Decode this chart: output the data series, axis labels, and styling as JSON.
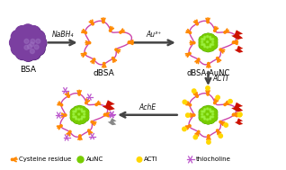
{
  "bg_color": "#ffffff",
  "bsa_color": "#7B3FA0",
  "bsa_highlight": "#9B6FBF",
  "dbsa_outline_color": "#CC44AA",
  "dbsa_fill_color": "#FFFFFF",
  "dbsa_cysteine_color": "#FF8800",
  "aunc_color": "#77CC00",
  "aunc_dark": "#55AA00",
  "acti_color": "#FFD700",
  "thiocholine_color": "#BB55CC",
  "arrow_color": "#444444",
  "flash_red": "#CC1100",
  "flash_gray": "#888888",
  "label_bsa": "BSA",
  "label_dbsa": "dBSA",
  "label_dBSA_AuNC": "dBSA-AuNC",
  "label_NaBH4": "NaBH₄",
  "label_Au3": "Au³⁺",
  "label_AchE": "AchE",
  "label_ACTI": "ACTI",
  "legend_cysteine": "Cysteine residue",
  "legend_aunc": "AuNC",
  "legend_acti": "ACTI",
  "legend_thiocholine": "thiocholine"
}
